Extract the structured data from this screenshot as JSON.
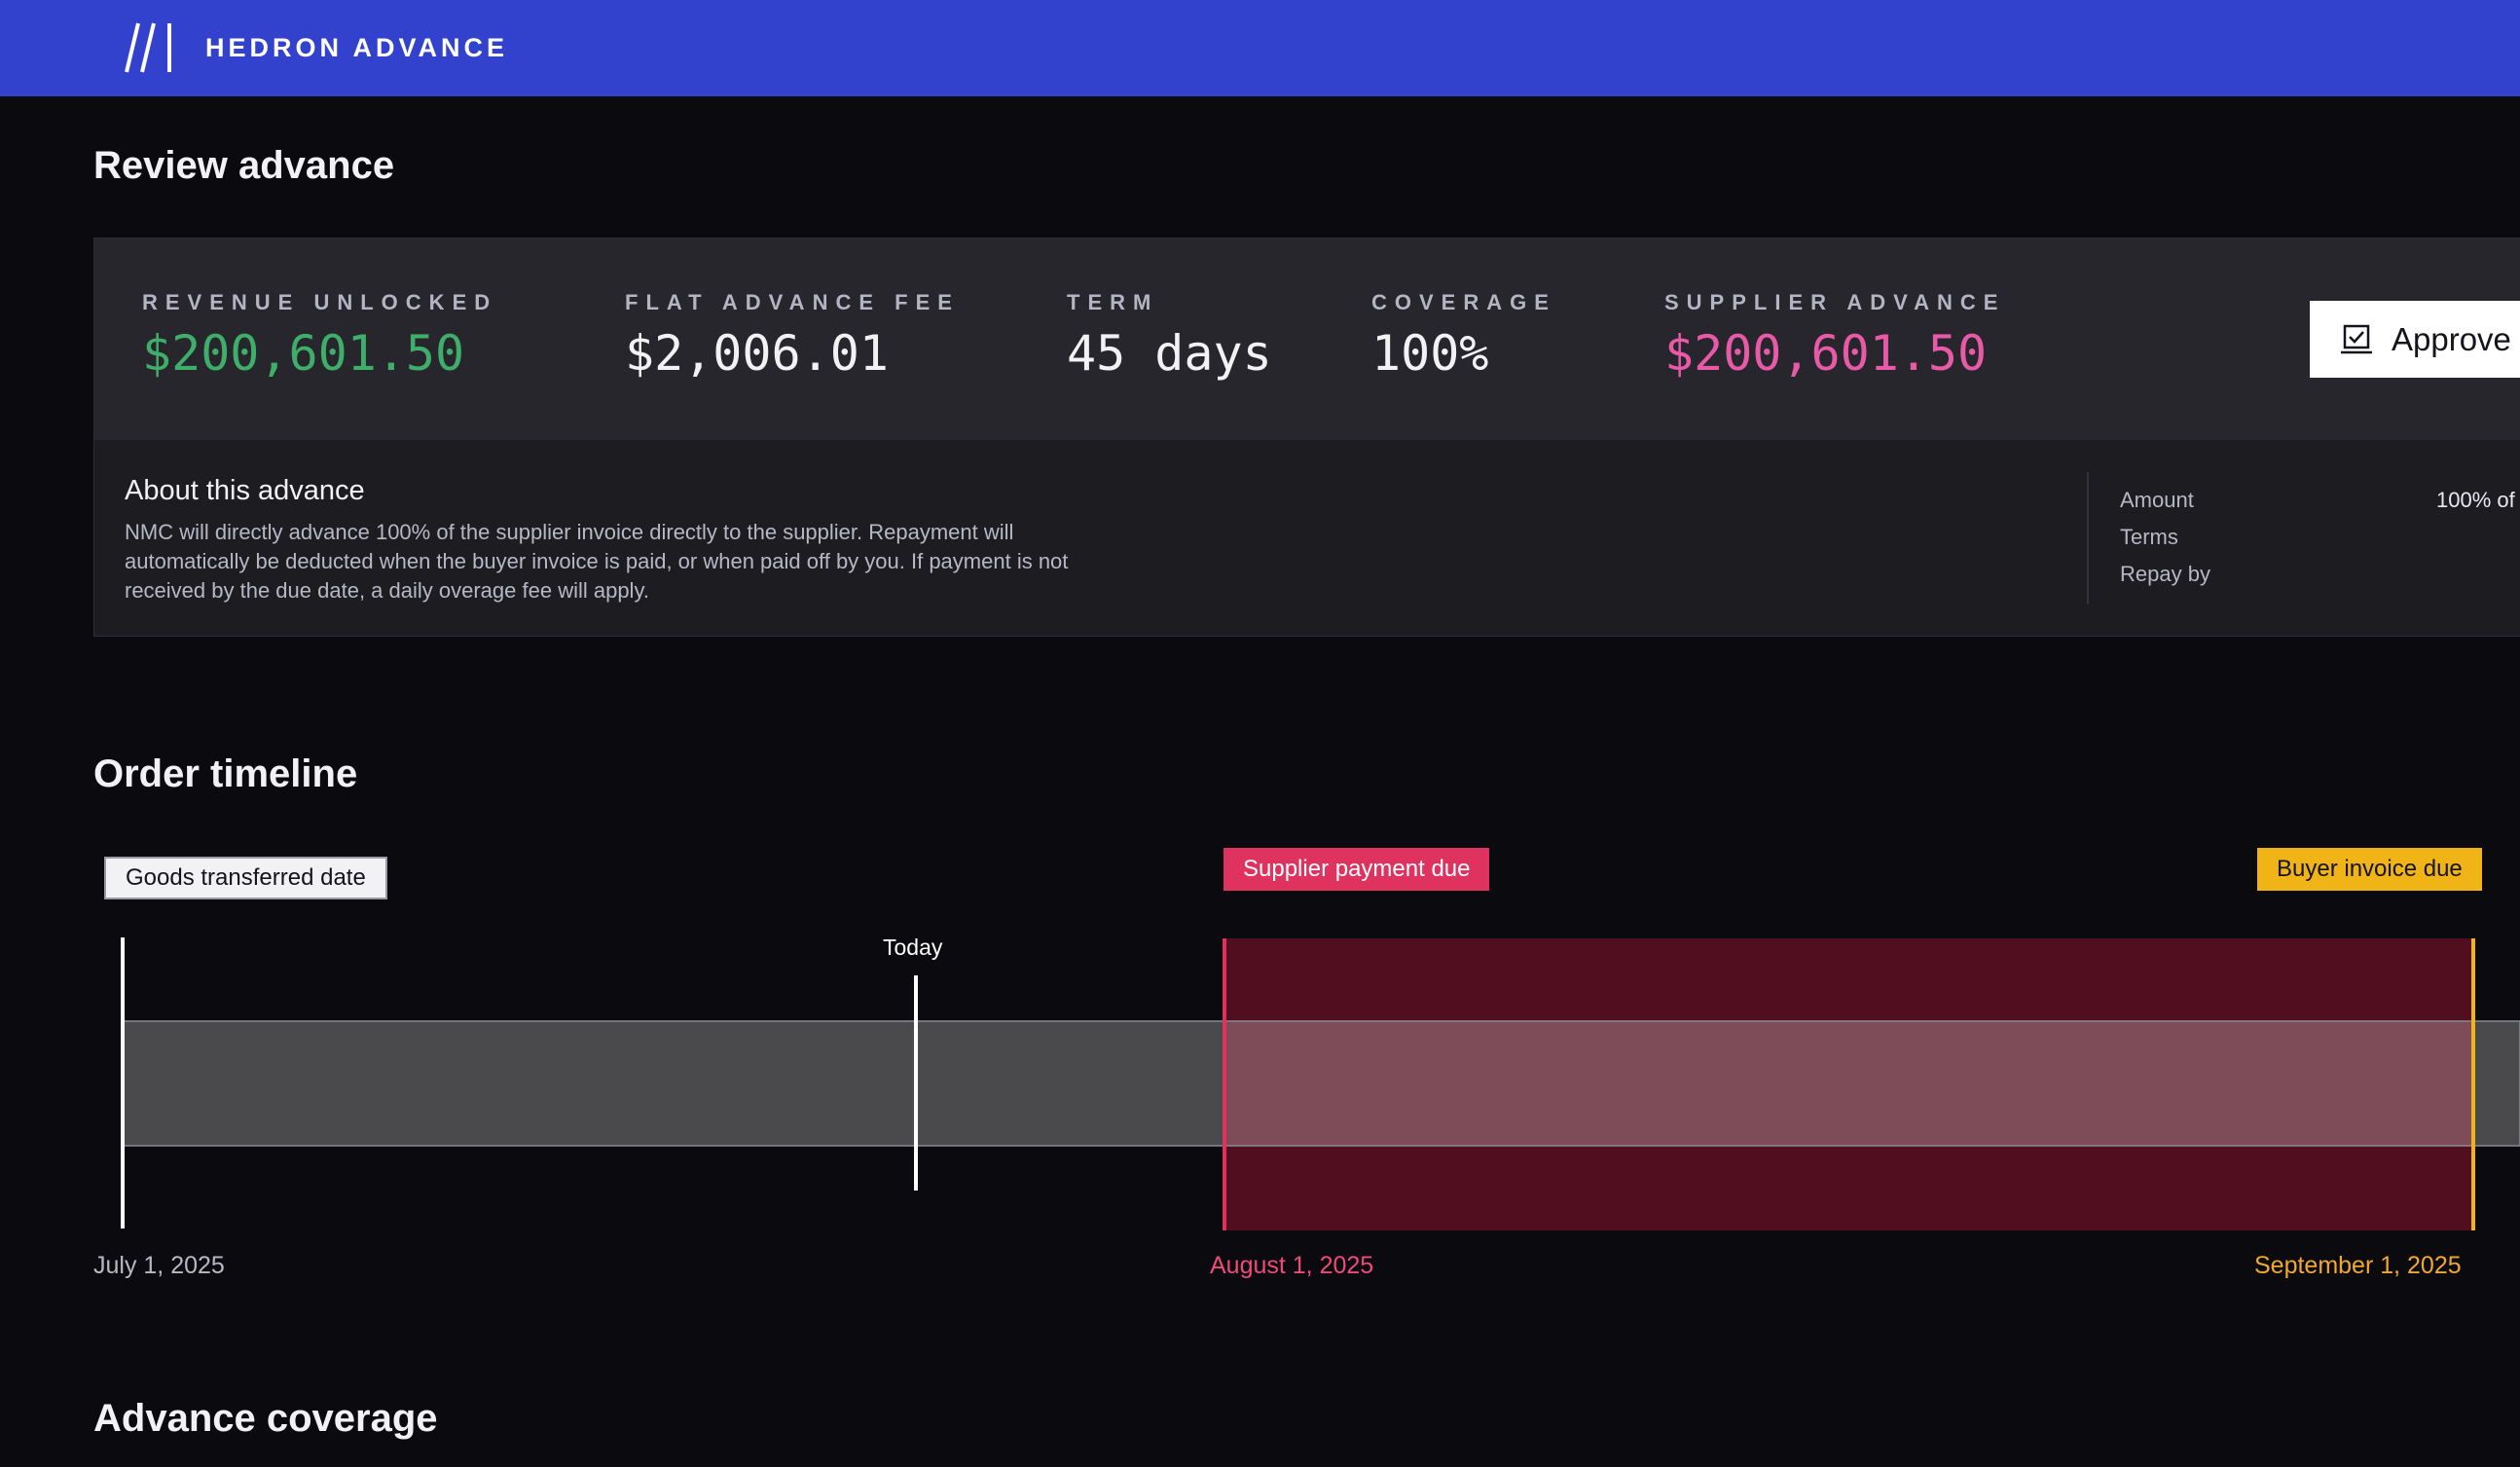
{
  "header": {
    "brand": "HEDRON ADVANCE",
    "logo_icon": "slashes-logo-icon",
    "background": "#3342cc"
  },
  "page": {
    "title": "Review advance"
  },
  "summary": {
    "metrics": [
      {
        "label": "REVENUE UNLOCKED",
        "value": "$200,601.50",
        "color": "#3fae6a"
      },
      {
        "label": "FLAT ADVANCE FEE",
        "value": "$2,006.01"
      },
      {
        "label": "TERM",
        "value": "45 days"
      },
      {
        "label": "COVERAGE",
        "value": "100%"
      },
      {
        "label": "SUPPLIER ADVANCE",
        "value": "$200,601.50",
        "color": "#e85aa7"
      }
    ],
    "approve_label": "Approve",
    "approve_icon": "approve-checkbox-icon"
  },
  "about": {
    "title": "About this advance",
    "body": "NMC will directly advance 100% of the supplier invoice directly to the supplier. Repayment will automatically be deducted when the buyer invoice is paid, or when paid off by you. If payment is not received by the due date, a daily overage fee will apply.",
    "details": [
      {
        "label": "Amount",
        "value": "100% of"
      },
      {
        "label": "Terms",
        "value": ""
      },
      {
        "label": "Repay by",
        "value": ""
      }
    ]
  },
  "timeline": {
    "title": "Order timeline",
    "tags": {
      "goods": "Goods transferred date",
      "supplier": "Supplier payment due",
      "buyer": "Buyer invoice due"
    },
    "today_label": "Today",
    "dates": {
      "start": "July 1, 2025",
      "supplier_due": "August 1, 2025",
      "buyer_due": "September 1, 2025"
    },
    "colors": {
      "supplier": "#e0325f",
      "buyer": "#f0b416",
      "overdue_fill": "#510e1e"
    }
  },
  "coverage": {
    "title": "Advance coverage"
  }
}
